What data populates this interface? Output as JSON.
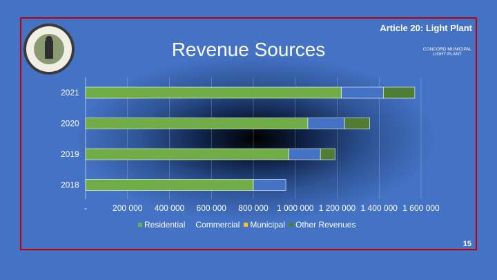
{
  "header": {
    "article": "Article 20: Light Plant",
    "title": "Revenue Sources"
  },
  "logo": {
    "line1": "CONCORD MUNICIPAL",
    "line2": "LIGHT PLANT"
  },
  "seal": {
    "name": "town-seal"
  },
  "page_number": "15",
  "colors": {
    "Residential": "#70ad47",
    "Commercial": "#4472c4",
    "Municipal": "#ffc000",
    "Other Revenues": "#4e7d33"
  },
  "chart_data": {
    "type": "bar",
    "orientation": "horizontal",
    "stacked": true,
    "categories": [
      "2021",
      "2020",
      "2019",
      "2018"
    ],
    "series": [
      {
        "name": "Residential",
        "values": [
          1220000,
          1060000,
          970000,
          800000
        ]
      },
      {
        "name": "Commercial",
        "values": [
          200000,
          175000,
          150000,
          155000
        ]
      },
      {
        "name": "Municipal",
        "values": [
          0,
          0,
          0,
          0
        ]
      },
      {
        "name": "Other Revenues",
        "values": [
          150000,
          120000,
          70000,
          0
        ]
      }
    ],
    "x_ticks": [
      "-",
      "200 000",
      "400 000",
      "600 000",
      "800 000",
      "1 000 000",
      "1 200 000",
      "1 400 000",
      "1 600 000"
    ],
    "xlim": [
      0,
      1600000
    ],
    "legend_position": "bottom",
    "grid": true
  }
}
